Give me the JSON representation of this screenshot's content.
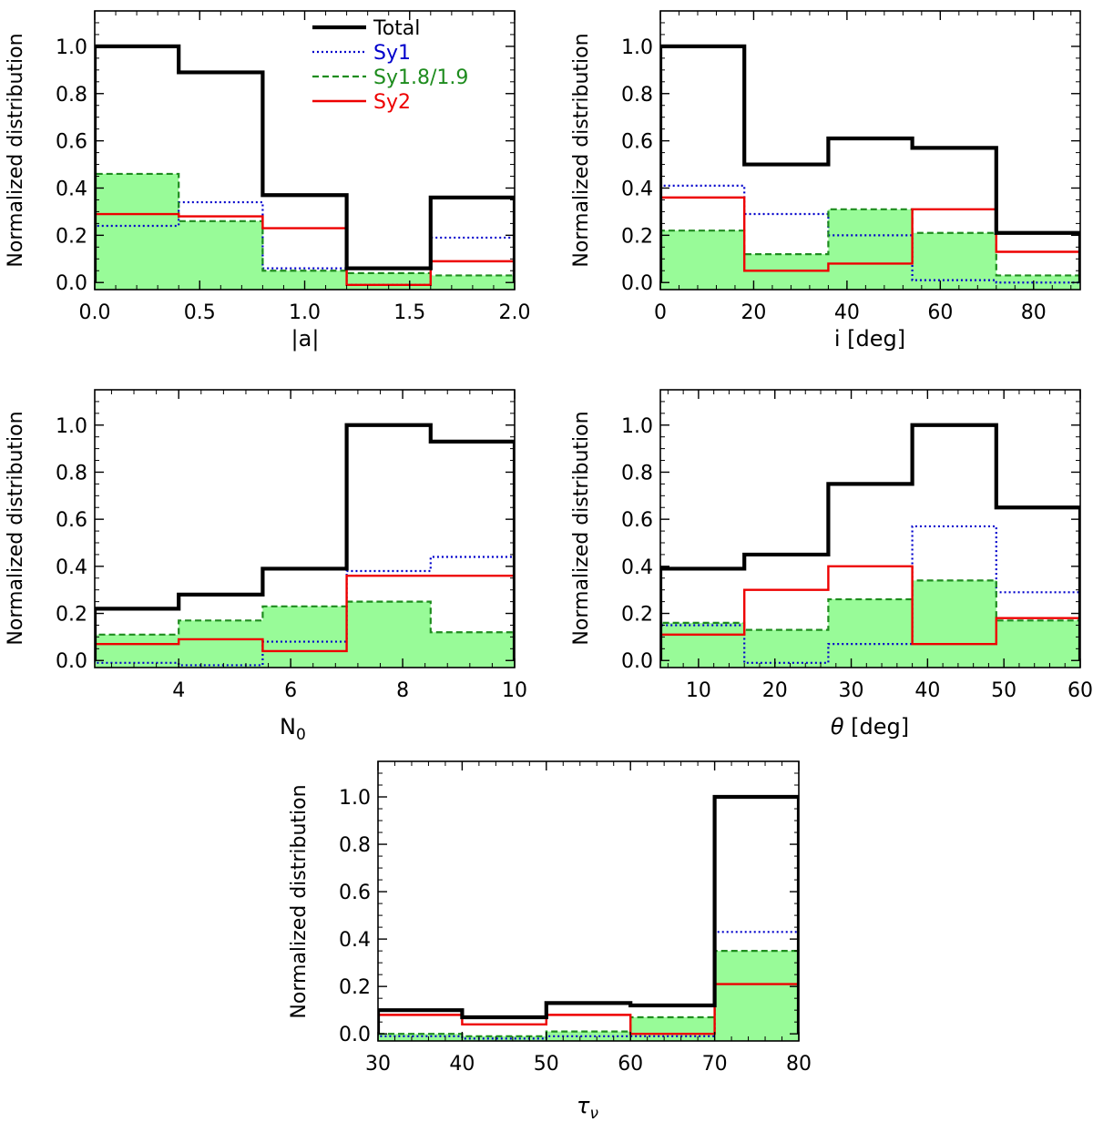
{
  "chart_data": [
    {
      "type": "step-histogram",
      "id": "a",
      "xlabel": "|a|",
      "ylabel": "Normalized distribution",
      "xlim": [
        0.0,
        2.0
      ],
      "ylim": [
        -0.03,
        1.15
      ],
      "xticks": [
        "0.0",
        "0.5",
        "1.0",
        "1.5",
        "2.0"
      ],
      "xtick_values": [
        0.0,
        0.5,
        1.0,
        1.5,
        2.0
      ],
      "yticks": [
        "0.0",
        "0.2",
        "0.4",
        "0.6",
        "0.8",
        "1.0"
      ],
      "ytick_values": [
        0.0,
        0.2,
        0.4,
        0.6,
        0.8,
        1.0
      ],
      "bin_edges": [
        0.0,
        0.4,
        0.8,
        1.2,
        1.6,
        2.0
      ],
      "series": [
        {
          "name": "Total",
          "values": [
            1.0,
            0.89,
            0.37,
            0.06,
            0.36
          ]
        },
        {
          "name": "Sy1",
          "values": [
            0.24,
            0.34,
            0.06,
            -0.01,
            0.19
          ]
        },
        {
          "name": "Sy1.8/1.9",
          "values": [
            0.46,
            0.26,
            0.05,
            0.04,
            0.03
          ]
        },
        {
          "name": "Sy2",
          "values": [
            0.29,
            0.28,
            0.23,
            -0.01,
            0.09
          ]
        }
      ],
      "legend": [
        "Total",
        "Sy1",
        "Sy1.8/1.9",
        "Sy2"
      ]
    },
    {
      "type": "step-histogram",
      "id": "i",
      "xlabel": "i [deg]",
      "ylabel": "Normalized distribution",
      "xlim": [
        0,
        90
      ],
      "ylim": [
        -0.03,
        1.15
      ],
      "xticks": [
        "0",
        "20",
        "40",
        "60",
        "80"
      ],
      "xtick_values": [
        0,
        20,
        40,
        60,
        80
      ],
      "yticks": [
        "0.0",
        "0.2",
        "0.4",
        "0.6",
        "0.8",
        "1.0"
      ],
      "ytick_values": [
        0.0,
        0.2,
        0.4,
        0.6,
        0.8,
        1.0
      ],
      "bin_edges": [
        0,
        18,
        36,
        54,
        72,
        90
      ],
      "series": [
        {
          "name": "Total",
          "values": [
            1.0,
            0.5,
            0.61,
            0.57,
            0.21
          ]
        },
        {
          "name": "Sy1",
          "values": [
            0.41,
            0.29,
            0.2,
            0.01,
            0.0
          ]
        },
        {
          "name": "Sy1.8/1.9",
          "values": [
            0.22,
            0.12,
            0.31,
            0.21,
            0.03
          ]
        },
        {
          "name": "Sy2",
          "values": [
            0.36,
            0.05,
            0.08,
            0.31,
            0.13
          ]
        }
      ]
    },
    {
      "type": "step-histogram",
      "id": "N0",
      "xlabel": "N0",
      "ylabel": "Normalized distribution",
      "xlim": [
        2.5,
        10
      ],
      "ylim": [
        -0.03,
        1.15
      ],
      "xticks": [
        "4",
        "6",
        "8",
        "10"
      ],
      "xtick_values": [
        4,
        6,
        8,
        10
      ],
      "yticks": [
        "0.0",
        "0.2",
        "0.4",
        "0.6",
        "0.8",
        "1.0"
      ],
      "ytick_values": [
        0.0,
        0.2,
        0.4,
        0.6,
        0.8,
        1.0
      ],
      "bin_edges": [
        2.5,
        4.0,
        5.5,
        7.0,
        8.5,
        10.0
      ],
      "series": [
        {
          "name": "Total",
          "values": [
            0.22,
            0.28,
            0.39,
            1.0,
            0.93
          ]
        },
        {
          "name": "Sy1",
          "values": [
            -0.01,
            -0.02,
            0.08,
            0.38,
            0.44
          ]
        },
        {
          "name": "Sy1.8/1.9",
          "values": [
            0.11,
            0.17,
            0.23,
            0.25,
            0.12
          ]
        },
        {
          "name": "Sy2",
          "values": [
            0.07,
            0.09,
            0.04,
            0.36,
            0.36
          ]
        }
      ]
    },
    {
      "type": "step-histogram",
      "id": "theta",
      "xlabel": "θ [deg]",
      "ylabel": "Normalized distribution",
      "xlim": [
        5,
        60
      ],
      "ylim": [
        -0.03,
        1.15
      ],
      "xticks": [
        "10",
        "20",
        "30",
        "40",
        "50",
        "60"
      ],
      "xtick_values": [
        10,
        20,
        30,
        40,
        50,
        60
      ],
      "yticks": [
        "0.0",
        "0.2",
        "0.4",
        "0.6",
        "0.8",
        "1.0"
      ],
      "ytick_values": [
        0.0,
        0.2,
        0.4,
        0.6,
        0.8,
        1.0
      ],
      "bin_edges": [
        5,
        16,
        27,
        38,
        49,
        60
      ],
      "series": [
        {
          "name": "Total",
          "values": [
            0.39,
            0.45,
            0.75,
            1.0,
            0.65
          ]
        },
        {
          "name": "Sy1",
          "values": [
            0.15,
            -0.01,
            0.07,
            0.57,
            0.29
          ]
        },
        {
          "name": "Sy1.8/1.9",
          "values": [
            0.16,
            0.13,
            0.26,
            0.34,
            0.17
          ]
        },
        {
          "name": "Sy2",
          "values": [
            0.11,
            0.3,
            0.4,
            0.07,
            0.18
          ]
        }
      ]
    },
    {
      "type": "step-histogram",
      "id": "tau",
      "xlabel": "τν",
      "ylabel": "Normalized distribution",
      "xlim": [
        30,
        80
      ],
      "ylim": [
        -0.03,
        1.15
      ],
      "xticks": [
        "30",
        "40",
        "50",
        "60",
        "70",
        "80"
      ],
      "xtick_values": [
        30,
        40,
        50,
        60,
        70,
        80
      ],
      "yticks": [
        "0.0",
        "0.2",
        "0.4",
        "0.6",
        "0.8",
        "1.0"
      ],
      "ytick_values": [
        0.0,
        0.2,
        0.4,
        0.6,
        0.8,
        1.0
      ],
      "bin_edges": [
        30,
        40,
        50,
        60,
        70,
        80
      ],
      "series": [
        {
          "name": "Total",
          "values": [
            0.1,
            0.07,
            0.13,
            0.12,
            1.0
          ]
        },
        {
          "name": "Sy1",
          "values": [
            -0.01,
            -0.02,
            -0.01,
            -0.01,
            0.43
          ]
        },
        {
          "name": "Sy1.8/1.9",
          "values": [
            0.0,
            -0.01,
            0.01,
            0.07,
            0.35
          ]
        },
        {
          "name": "Sy2",
          "values": [
            0.08,
            0.04,
            0.08,
            0.0,
            0.21
          ]
        }
      ]
    }
  ],
  "colors": {
    "Total": "#000000",
    "Sy1": "#0000cc",
    "Sy1.8/1.9": "#1e8c1e",
    "Sy1.8/1.9_fill": "#98fb98",
    "Sy2": "#ee0000"
  }
}
